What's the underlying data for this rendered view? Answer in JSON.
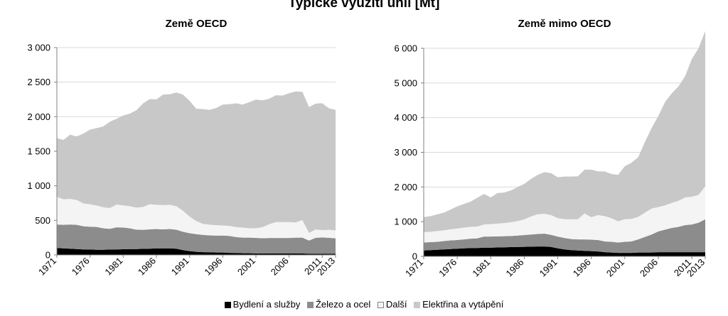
{
  "title": "Typické využití uhlí [Mt]",
  "colors": {
    "bydleni": "#000000",
    "zelezo": "#8c8c8c",
    "dalsi": "#f4f4f4",
    "elektrina": "#c8c8c8",
    "gridline": "#d9d9d9",
    "axis": "#808080"
  },
  "legend": [
    {
      "label": "Bydlení a služby",
      "color": "#000000"
    },
    {
      "label": "Železo a ocel",
      "color": "#8c8c8c"
    },
    {
      "label": "Další",
      "color": "#f4f4f4"
    },
    {
      "label": "Elektřina a vytápění",
      "color": "#c8c8c8"
    }
  ],
  "chart_data": [
    {
      "type": "area",
      "stacked": true,
      "title": "Země OECD",
      "x": [
        1971,
        1972,
        1973,
        1974,
        1975,
        1976,
        1977,
        1978,
        1979,
        1980,
        1981,
        1982,
        1983,
        1984,
        1985,
        1986,
        1987,
        1988,
        1989,
        1990,
        1991,
        1992,
        1993,
        1994,
        1995,
        1996,
        1997,
        1998,
        1999,
        2000,
        2001,
        2002,
        2003,
        2004,
        2005,
        2006,
        2007,
        2008,
        2009,
        2010,
        2011,
        2012,
        2013
      ],
      "xticks": [
        "1971",
        "1976",
        "1981",
        "1986",
        "1991",
        "1996",
        "2001",
        "2006",
        "2011",
        "2013"
      ],
      "ylim": [
        0,
        3000
      ],
      "yticks": [
        0,
        500,
        1000,
        1500,
        2000,
        2500,
        3000
      ],
      "ytick_labels": [
        "0",
        "500",
        "1 000",
        "1 500",
        "2 000",
        "2 500",
        "3 000"
      ],
      "grid": true,
      "series": [
        {
          "name": "Bydlení a služby",
          "values": [
            100,
            95,
            90,
            85,
            80,
            78,
            75,
            75,
            78,
            80,
            82,
            85,
            85,
            88,
            90,
            95,
            95,
            95,
            90,
            70,
            55,
            45,
            40,
            38,
            35,
            35,
            30,
            28,
            25,
            25,
            22,
            22,
            20,
            20,
            20,
            20,
            20,
            20,
            18,
            18,
            18,
            18,
            15
          ]
        },
        {
          "name": "Železo a ocel",
          "values": [
            340,
            340,
            350,
            350,
            335,
            330,
            330,
            310,
            300,
            320,
            315,
            300,
            280,
            275,
            280,
            280,
            275,
            280,
            275,
            265,
            260,
            255,
            250,
            245,
            245,
            245,
            245,
            230,
            225,
            225,
            225,
            220,
            225,
            225,
            225,
            225,
            230,
            230,
            190,
            230,
            235,
            230,
            225
          ]
        },
        {
          "name": "Další",
          "values": [
            400,
            370,
            370,
            360,
            330,
            325,
            310,
            305,
            300,
            330,
            320,
            320,
            320,
            330,
            365,
            350,
            350,
            350,
            340,
            305,
            240,
            190,
            160,
            155,
            150,
            145,
            145,
            145,
            145,
            135,
            140,
            160,
            200,
            230,
            230,
            230,
            220,
            255,
            110,
            120,
            105,
            115,
            115
          ]
        },
        {
          "name": "Elektřina a vytápění",
          "values": [
            850,
            860,
            930,
            920,
            1010,
            1080,
            1120,
            1170,
            1250,
            1240,
            1300,
            1340,
            1410,
            1500,
            1520,
            1525,
            1600,
            1600,
            1645,
            1680,
            1675,
            1625,
            1660,
            1660,
            1695,
            1750,
            1760,
            1790,
            1780,
            1825,
            1860,
            1835,
            1815,
            1835,
            1830,
            1865,
            1895,
            1855,
            1822,
            1822,
            1837,
            1757,
            1745
          ]
        }
      ]
    },
    {
      "type": "area",
      "stacked": true,
      "title": "Země mimo OECD",
      "x": [
        1971,
        1972,
        1973,
        1974,
        1975,
        1976,
        1977,
        1978,
        1979,
        1980,
        1981,
        1982,
        1983,
        1984,
        1985,
        1986,
        1987,
        1988,
        1989,
        1990,
        1991,
        1992,
        1993,
        1994,
        1995,
        1996,
        1997,
        1998,
        1999,
        2000,
        2001,
        2002,
        2003,
        2004,
        2005,
        2006,
        2007,
        2008,
        2009,
        2010,
        2011,
        2012,
        2013
      ],
      "xticks": [
        "1971",
        "1976",
        "1981",
        "1986",
        "1991",
        "1996",
        "2001",
        "2006",
        "2011",
        "2013"
      ],
      "ylim": [
        0,
        6000
      ],
      "yticks": [
        0,
        1000,
        2000,
        3000,
        4000,
        5000,
        6000
      ],
      "ytick_labels": [
        "0",
        "1 000",
        "2 000",
        "3 000",
        "4 000",
        "5 000",
        "6 000"
      ],
      "grid": true,
      "series": [
        {
          "name": "Bydlení a služby",
          "values": [
            170,
            180,
            190,
            200,
            210,
            220,
            230,
            240,
            240,
            250,
            250,
            255,
            260,
            265,
            270,
            275,
            280,
            285,
            285,
            270,
            230,
            200,
            180,
            170,
            160,
            150,
            140,
            120,
            110,
            100,
            100,
            100,
            110,
            110,
            110,
            120,
            120,
            120,
            120,
            120,
            120,
            120,
            120
          ]
        },
        {
          "name": "Železo a ocel",
          "values": [
            230,
            230,
            230,
            240,
            250,
            250,
            260,
            270,
            280,
            320,
            320,
            320,
            320,
            320,
            330,
            340,
            350,
            360,
            370,
            350,
            340,
            330,
            320,
            320,
            330,
            330,
            330,
            310,
            310,
            300,
            320,
            330,
            380,
            450,
            520,
            600,
            650,
            700,
            730,
            780,
            800,
            850,
            950
          ]
        },
        {
          "name": "Další",
          "values": [
            300,
            300,
            310,
            310,
            320,
            330,
            340,
            340,
            340,
            350,
            360,
            370,
            380,
            400,
            420,
            450,
            520,
            570,
            570,
            570,
            530,
            540,
            570,
            580,
            750,
            650,
            720,
            730,
            680,
            610,
            650,
            650,
            650,
            700,
            750,
            700,
            700,
            720,
            750,
            800,
            800,
            800,
            950
          ]
        },
        {
          "name": "Elektřina a vytápění",
          "values": [
            430,
            450,
            480,
            510,
            570,
            640,
            680,
            730,
            830,
            880,
            770,
            880,
            880,
            915,
            980,
            1025,
            1080,
            1135,
            1205,
            1210,
            1180,
            1230,
            1230,
            1240,
            1260,
            1370,
            1260,
            1290,
            1275,
            1340,
            1530,
            1620,
            1720,
            2040,
            2320,
            2630,
            2980,
            3160,
            3300,
            3500,
            3970,
            4230,
            4480
          ]
        }
      ]
    }
  ]
}
